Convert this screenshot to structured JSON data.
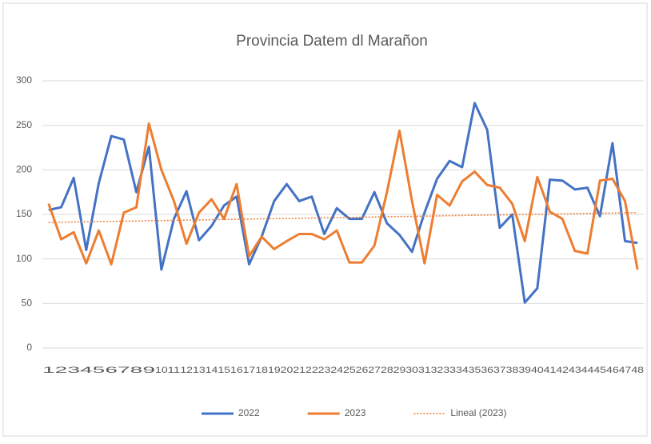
{
  "chart_data": {
    "type": "line",
    "title": "Provincia Datem dl Marañon",
    "categories": [
      "1",
      "2",
      "3",
      "4",
      "5",
      "6",
      "7",
      "8",
      "9",
      "10",
      "11",
      "12",
      "13",
      "14",
      "15",
      "16",
      "17",
      "18",
      "19",
      "20",
      "21",
      "22",
      "23",
      "24",
      "25",
      "26",
      "27",
      "28",
      "29",
      "30",
      "31",
      "32",
      "33",
      "34",
      "35",
      "36",
      "37",
      "38",
      "39",
      "40",
      "41",
      "42",
      "43",
      "44",
      "45",
      "46",
      "47",
      "48"
    ],
    "series": [
      {
        "name": "2022",
        "color": "#4472c4",
        "values": [
          155,
          158,
          191,
          110,
          185,
          238,
          234,
          175,
          226,
          88,
          145,
          176,
          121,
          137,
          160,
          170,
          94,
          125,
          165,
          184,
          165,
          170,
          128,
          157,
          145,
          145,
          175,
          140,
          127,
          108,
          152,
          190,
          210,
          203,
          275,
          245,
          135,
          150,
          51,
          67,
          189,
          188,
          178,
          180,
          148,
          230,
          120,
          118
        ]
      },
      {
        "name": "2023",
        "color": "#ed7d31",
        "values": [
          162,
          122,
          130,
          95,
          132,
          94,
          152,
          158,
          252,
          200,
          165,
          117,
          152,
          167,
          145,
          184,
          103,
          125,
          111,
          120,
          128,
          128,
          122,
          132,
          96,
          96,
          115,
          175,
          244,
          165,
          95,
          172,
          160,
          187,
          198,
          183,
          180,
          162,
          120,
          192,
          153,
          145,
          109,
          106,
          188,
          190,
          165,
          88
        ]
      }
    ],
    "trendline": {
      "name": "Lineal (2023)",
      "color": "#ed7d31",
      "values": [
        141,
        152
      ]
    },
    "ylim": [
      0,
      300
    ],
    "yticks": [
      0,
      50,
      100,
      150,
      200,
      250,
      300
    ],
    "grid": true
  }
}
